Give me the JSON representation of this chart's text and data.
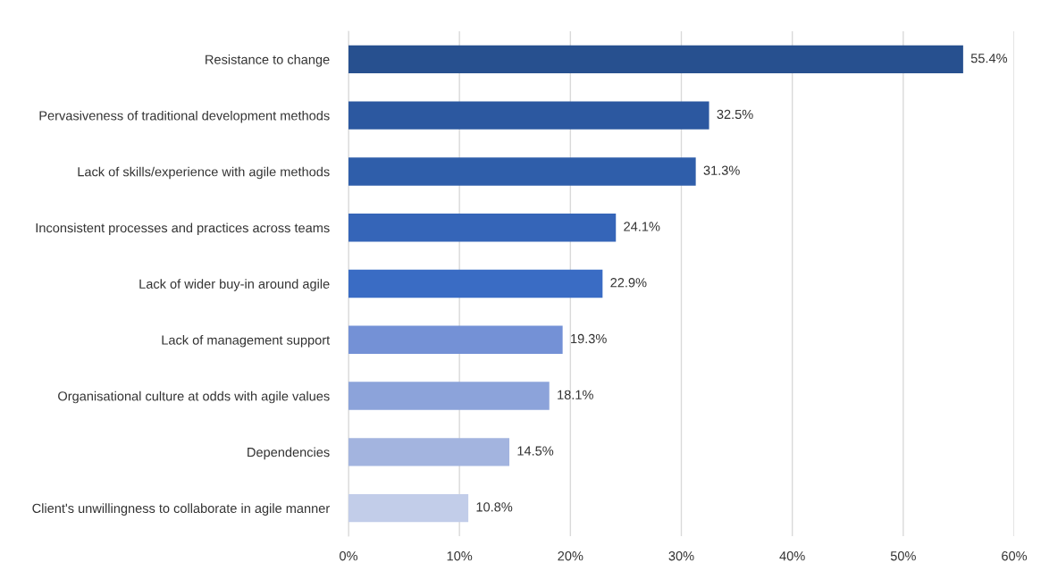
{
  "chart_data": {
    "type": "bar",
    "orientation": "horizontal",
    "categories": [
      "Resistance to change",
      "Pervasiveness of traditional development methods",
      "Lack of skills/experience with agile methods",
      "Inconsistent processes and practices across teams",
      "Lack of wider buy-in around agile",
      "Lack of management support",
      "Organisational culture at odds with agile values",
      "Dependencies",
      "Client's unwillingness to collaborate in agile manner"
    ],
    "values": [
      55.4,
      32.5,
      31.3,
      24.1,
      22.9,
      19.3,
      18.1,
      14.5,
      10.8
    ],
    "colors": [
      "#27508f",
      "#2c58a0",
      "#2f5eaa",
      "#3565b8",
      "#3a6cc4",
      "#7491d6",
      "#8ca3da",
      "#a3b4df",
      "#c2cde9"
    ],
    "value_labels": [
      "55.4%",
      "32.5%",
      "31.3%",
      "24.1%",
      "22.9%",
      "19.3%",
      "18.1%",
      "14.5%",
      "10.8%"
    ],
    "xlim": [
      0,
      60
    ],
    "xticks": [
      {
        "value": 0,
        "label": "0%"
      },
      {
        "value": 10,
        "label": "10%"
      },
      {
        "value": 20,
        "label": "20%"
      },
      {
        "value": 30,
        "label": "30%"
      },
      {
        "value": 40,
        "label": "40%"
      },
      {
        "value": 50,
        "label": "50%"
      },
      {
        "value": 60,
        "label": "60%"
      }
    ],
    "grid": "x"
  }
}
